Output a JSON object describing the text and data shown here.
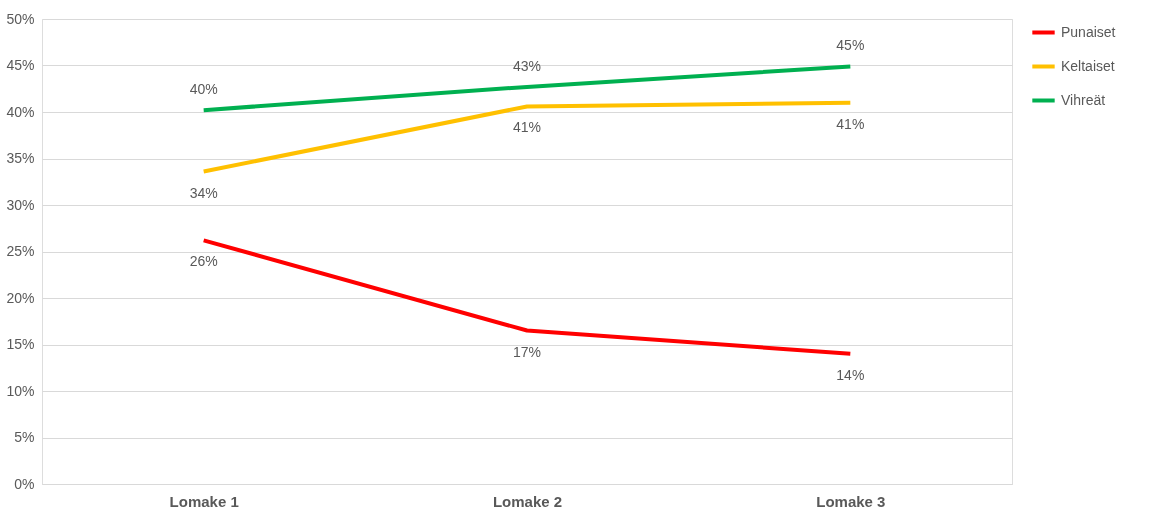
{
  "chart_data": {
    "type": "line",
    "categories": [
      "Lomake 1",
      "Lomake 2",
      "Lomake 3"
    ],
    "series": [
      {
        "name": "Punaiset",
        "color": "#ff0000",
        "values": [
          26.2,
          16.5,
          14.0
        ],
        "value_labels": [
          "26%",
          "17%",
          "14%"
        ]
      },
      {
        "name": "Keltaiset",
        "color": "#ffc000",
        "values": [
          33.6,
          40.6,
          41.0
        ],
        "value_labels": [
          "34%",
          "41%",
          "41%"
        ]
      },
      {
        "name": "Vihreät",
        "color": "#00b050",
        "values": [
          40.2,
          42.7,
          44.9
        ],
        "value_labels": [
          "40%",
          "43%",
          "45%"
        ]
      }
    ],
    "ylim": [
      0,
      50
    ],
    "yticks": [
      {
        "value": 0,
        "label": "0%"
      },
      {
        "value": 5,
        "label": "5%"
      },
      {
        "value": 10,
        "label": "10%"
      },
      {
        "value": 15,
        "label": "15%"
      },
      {
        "value": 20,
        "label": "20%"
      },
      {
        "value": 25,
        "label": "25%"
      },
      {
        "value": 30,
        "label": "30%"
      },
      {
        "value": 35,
        "label": "35%"
      },
      {
        "value": 40,
        "label": "40%"
      },
      {
        "value": 45,
        "label": "45%"
      },
      {
        "value": 50,
        "label": "50%"
      }
    ],
    "grid": "y",
    "legend": "right",
    "marker": "none",
    "line_style": "solid"
  }
}
